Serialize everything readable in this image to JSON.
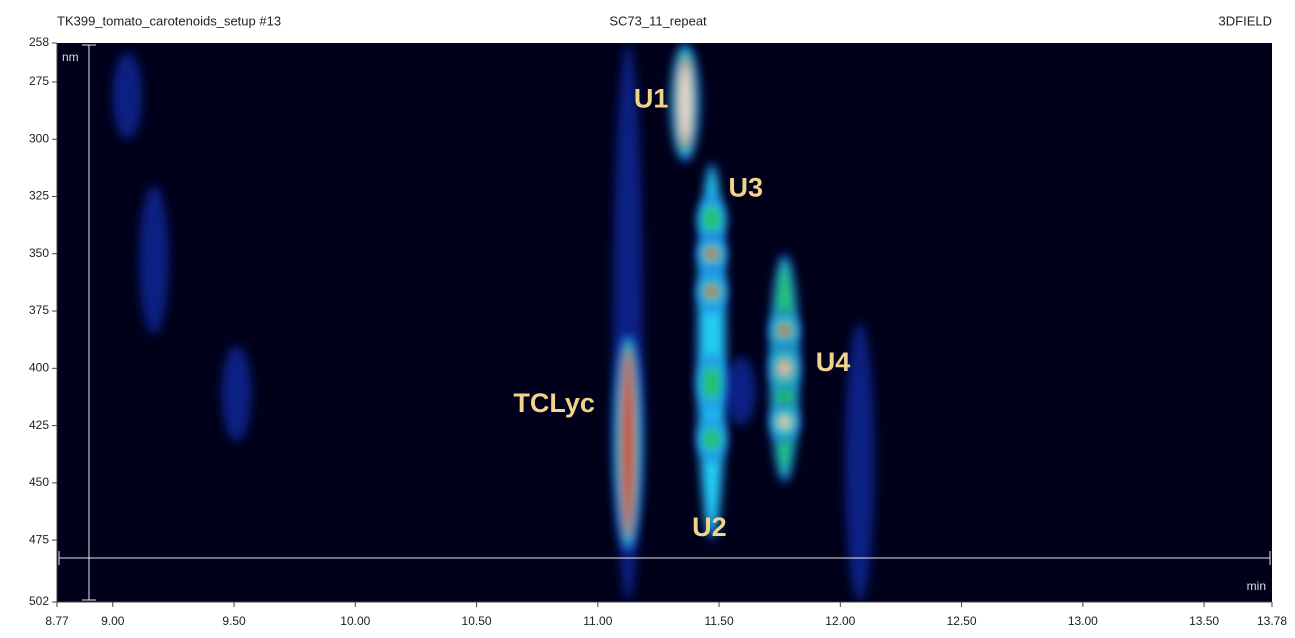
{
  "chart_data": {
    "type": "field3d",
    "header_left": "TK399_tomato_carotenoids_setup #13",
    "title": "SC73_11_repeat",
    "header_right": "3DFIELD",
    "xlabel": "min",
    "ylabel": "nm",
    "xlim": [
      8.77,
      13.78
    ],
    "xticks": [
      {
        "value": 8.77,
        "label": "8.77"
      },
      {
        "value": 9,
        "label": "9.00"
      },
      {
        "value": 9.5,
        "label": "9.50"
      },
      {
        "value": 10,
        "label": "10.00"
      },
      {
        "value": 10.5,
        "label": "10.50"
      },
      {
        "value": 11,
        "label": "11.00"
      },
      {
        "value": 11.5,
        "label": "11.50"
      },
      {
        "value": 12,
        "label": "12.00"
      },
      {
        "value": 12.5,
        "label": "12.50"
      },
      {
        "value": 13,
        "label": "13.00"
      },
      {
        "value": 13.5,
        "label": "13.50"
      },
      {
        "value": 13.78,
        "label": "13.78"
      }
    ],
    "ylim": [
      258,
      502
    ],
    "yticks": [
      258,
      275,
      300,
      325,
      350,
      375,
      400,
      425,
      450,
      475,
      502
    ],
    "colormap": [
      "#1a3cd8",
      "#22d4f4",
      "#22c048",
      "#e0142c",
      "#ffffff"
    ],
    "blobs": [
      {
        "x": 9.06,
        "y_range": [
          262,
          300
        ],
        "level": 1
      },
      {
        "x": 9.17,
        "y_range": [
          320,
          385
        ],
        "level": 1
      },
      {
        "x": 9.51,
        "y_range": [
          390,
          432
        ],
        "level": 1
      },
      {
        "x": 11.125,
        "y_range": [
          258,
          502
        ],
        "level": 1
      },
      {
        "x": 11.125,
        "y_range": [
          385,
          480
        ],
        "level": 4
      },
      {
        "x": 11.36,
        "y_range": [
          258,
          310
        ],
        "level": 5
      },
      {
        "x": 11.47,
        "y_range": [
          310,
          475
        ],
        "level": 2
      },
      {
        "x": 11.47,
        "y_range": [
          325,
          345
        ],
        "level": 3
      },
      {
        "x": 11.47,
        "y_range": [
          342,
          358
        ],
        "level": 4
      },
      {
        "x": 11.47,
        "y_range": [
          358,
          375
        ],
        "level": 4
      },
      {
        "x": 11.47,
        "y_range": [
          395,
          418
        ],
        "level": 3
      },
      {
        "x": 11.47,
        "y_range": [
          422,
          440
        ],
        "level": 3
      },
      {
        "x": 11.77,
        "y_range": [
          350,
          450
        ],
        "level": 3
      },
      {
        "x": 11.77,
        "y_range": [
          375,
          392
        ],
        "level": 4
      },
      {
        "x": 11.77,
        "y_range": [
          390,
          410
        ],
        "level": 5
      },
      {
        "x": 11.77,
        "y_range": [
          415,
          432
        ],
        "level": 5
      },
      {
        "x": 12.08,
        "y_range": [
          380,
          502
        ],
        "level": 1
      },
      {
        "x": 11.59,
        "y_range": [
          395,
          425
        ],
        "level": 1
      }
    ],
    "annotations": [
      {
        "text": "U1",
        "x": 11.22,
        "y": 283
      },
      {
        "text": "U3",
        "x": 11.61,
        "y": 322
      },
      {
        "text": "U4",
        "x": 11.97,
        "y": 398
      },
      {
        "text": "TCLyc",
        "x": 10.82,
        "y": 416
      },
      {
        "text": "U2",
        "x": 11.46,
        "y": 470
      }
    ]
  }
}
